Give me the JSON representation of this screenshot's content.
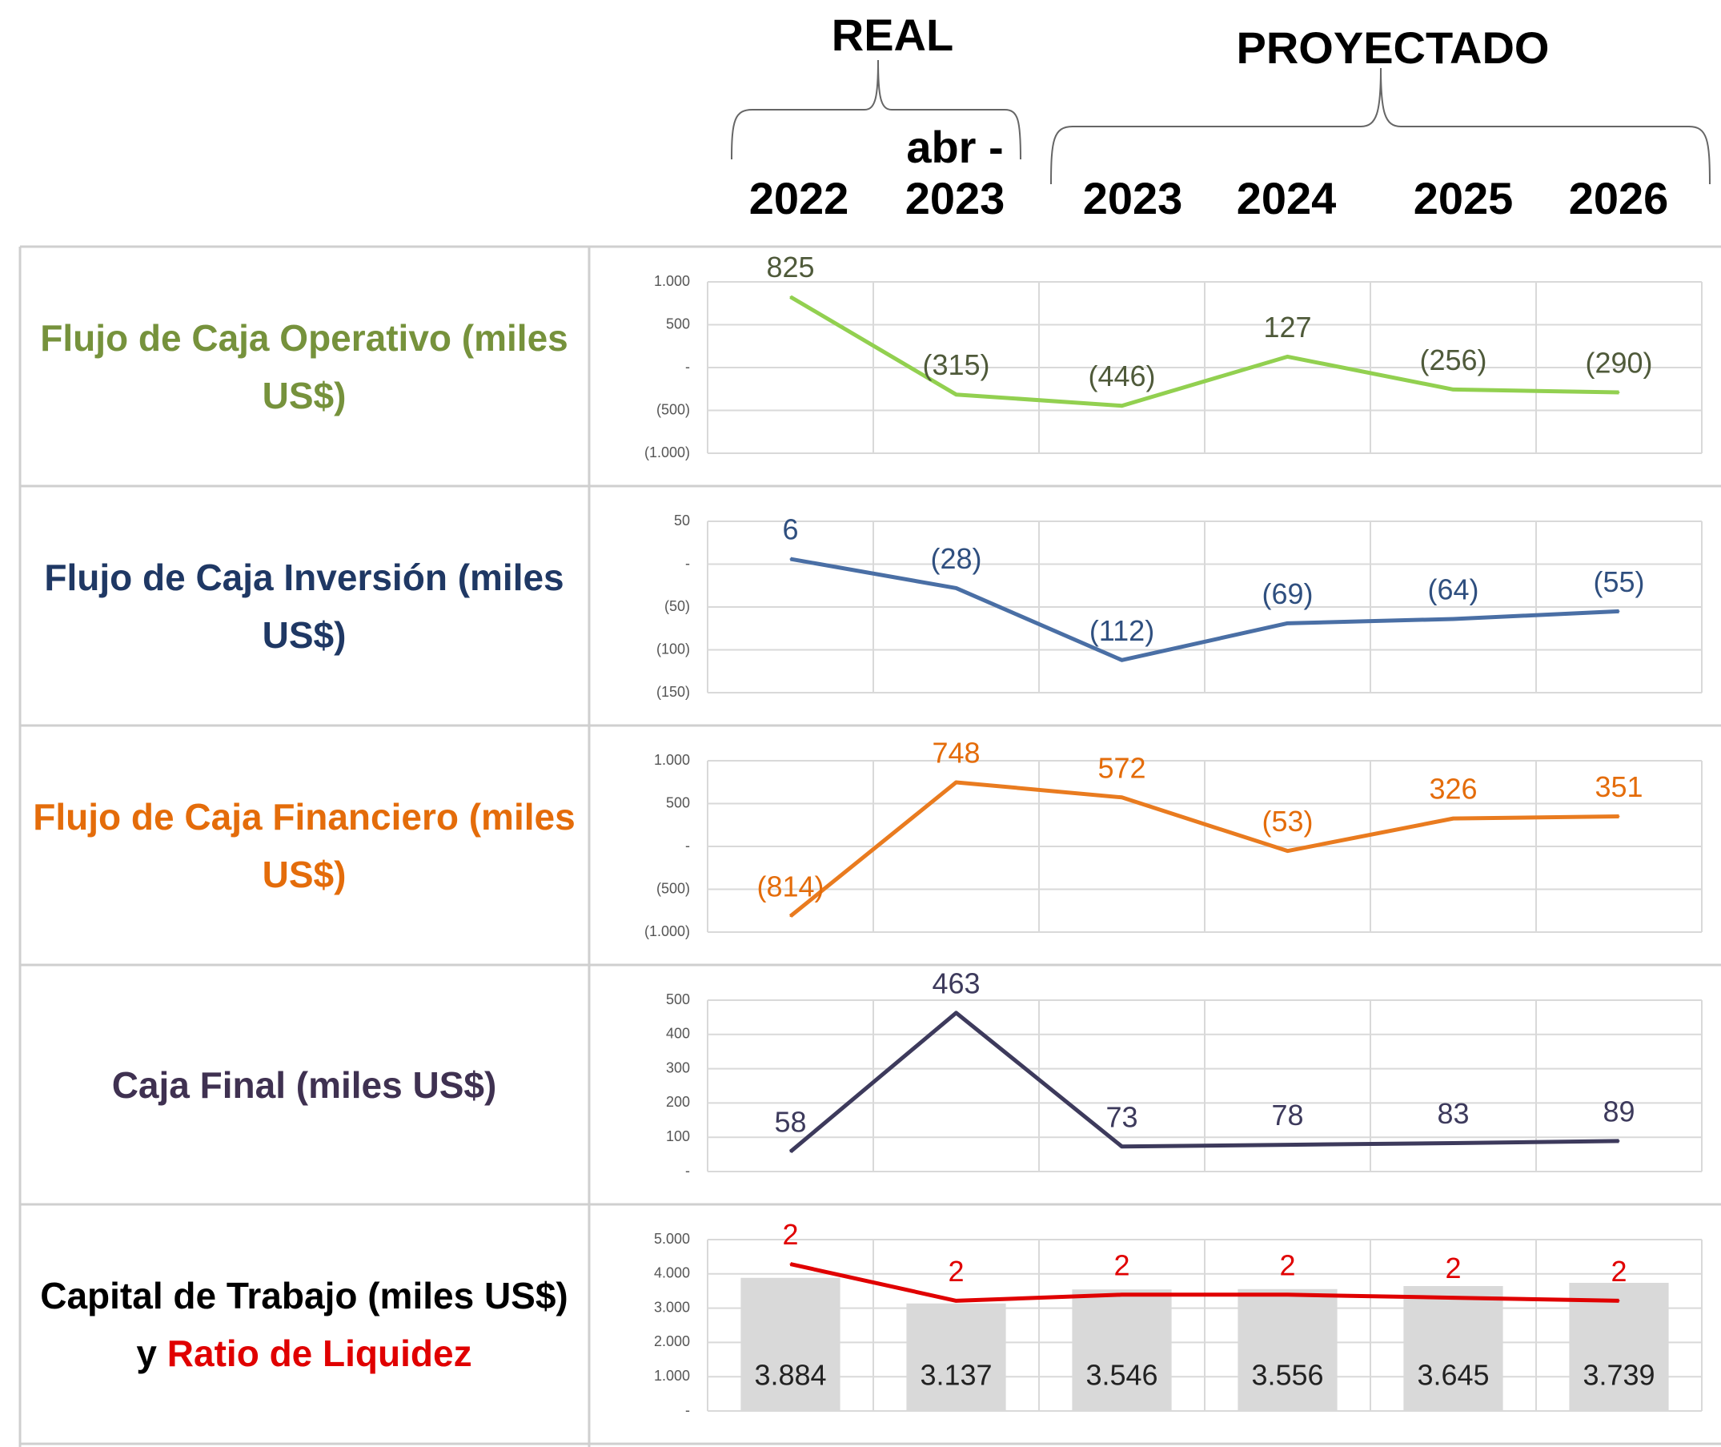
{
  "header": {
    "real": "REAL",
    "proyectado": "PROYECTADO",
    "periods": [
      "2022",
      "abr - 2023",
      "2023",
      "2024",
      "2025",
      "2026"
    ]
  },
  "chart_data": [
    {
      "type": "line",
      "title": "Flujo de Caja Operativo (miles US$)",
      "title_color": "#76923c",
      "color": "#92d050",
      "values": [
        825,
        -315,
        -446,
        127,
        -256,
        -290
      ],
      "value_labels": [
        "825",
        "(315)",
        "(446)",
        "127",
        "(256)",
        "(290)"
      ],
      "label_color": "#4f5a3a",
      "ylim": [
        -1000,
        1000
      ],
      "yticks": [
        {
          "value": 1000,
          "label": "1.000"
        },
        500,
        {
          "value": 0,
          "label": "-"
        },
        {
          "value": -500,
          "label": "(500)"
        },
        {
          "value": -1000,
          "label": "(1.000)"
        }
      ],
      "grid": true
    },
    {
      "type": "line",
      "title": "Flujo de Caja Inversión (miles US$)",
      "title_color": "#1f3864",
      "color": "#4a6fa5",
      "values": [
        6,
        -28,
        -112,
        -69,
        -64,
        -55
      ],
      "value_labels": [
        "6",
        "(28)",
        "(112)",
        "(69)",
        "(64)",
        "(55)"
      ],
      "label_color": "#2f4f7f",
      "ylim": [
        -150,
        50
      ],
      "yticks": [
        50,
        {
          "value": 0,
          "label": "-"
        },
        {
          "value": -50,
          "label": "(50)"
        },
        {
          "value": -100,
          "label": "(100)"
        },
        {
          "value": -150,
          "label": "(150)"
        }
      ],
      "grid": true
    },
    {
      "type": "line",
      "title": "Flujo de Caja Financiero (miles US$)",
      "title_color": "#e46c0a",
      "color": "#e97b1f",
      "values": [
        -814,
        748,
        572,
        -53,
        326,
        351
      ],
      "value_labels": [
        "(814)",
        "748",
        "572",
        "(53)",
        "326",
        "351"
      ],
      "label_color": "#e46c0a",
      "ylim": [
        -1000,
        1000
      ],
      "yticks": [
        {
          "value": 1000,
          "label": "1.000"
        },
        500,
        {
          "value": 0,
          "label": "-"
        },
        {
          "value": -500,
          "label": "(500)"
        },
        {
          "value": -1000,
          "label": "(1.000)"
        }
      ],
      "grid": true
    },
    {
      "type": "line",
      "title": "Caja Final (miles US$)",
      "title_color": "#3f3151",
      "color": "#3d3a5c",
      "values": [
        58,
        463,
        73,
        78,
        83,
        89
      ],
      "value_labels": [
        "58",
        "463",
        "73",
        "78",
        "83",
        "89"
      ],
      "label_color": "#3d3a5c",
      "ylim": [
        0,
        500
      ],
      "yticks": [
        500,
        400,
        300,
        200,
        100,
        {
          "value": 0,
          "label": "-"
        }
      ],
      "grid": true
    },
    {
      "type": "combo",
      "title": [
        "Capital de Trabajo (miles US$) y",
        "Ratio de Liquidez"
      ],
      "title_colors": [
        "#000000",
        "#e00000"
      ],
      "ylim": [
        0,
        5000
      ],
      "yticks": [
        {
          "value": 5000,
          "label": "5.000"
        },
        {
          "value": 4000,
          "label": "4.000"
        },
        {
          "value": 3000,
          "label": "3.000"
        },
        {
          "value": 2000,
          "label": "2.000"
        },
        {
          "value": 1000,
          "label": "1.000"
        },
        {
          "value": 0,
          "label": "-"
        }
      ],
      "y2lim": [
        0,
        2.8
      ],
      "grid": true,
      "series": [
        {
          "type": "bar",
          "color": "#d9d9d9",
          "values": [
            3884,
            3137,
            3546,
            3556,
            3645,
            3739
          ],
          "value_labels": [
            "3.884",
            "3.137",
            "3.546",
            "3.556",
            "3.645",
            "3.739"
          ],
          "label_color": "#222222"
        },
        {
          "type": "line",
          "axis": "y2",
          "color": "#e00000",
          "values": [
            2.4,
            1.8,
            1.9,
            1.9,
            1.85,
            1.8
          ],
          "value_labels": [
            "2",
            "2",
            "2",
            "2",
            "2",
            "2"
          ],
          "label_color": "#e00000"
        }
      ]
    }
  ]
}
